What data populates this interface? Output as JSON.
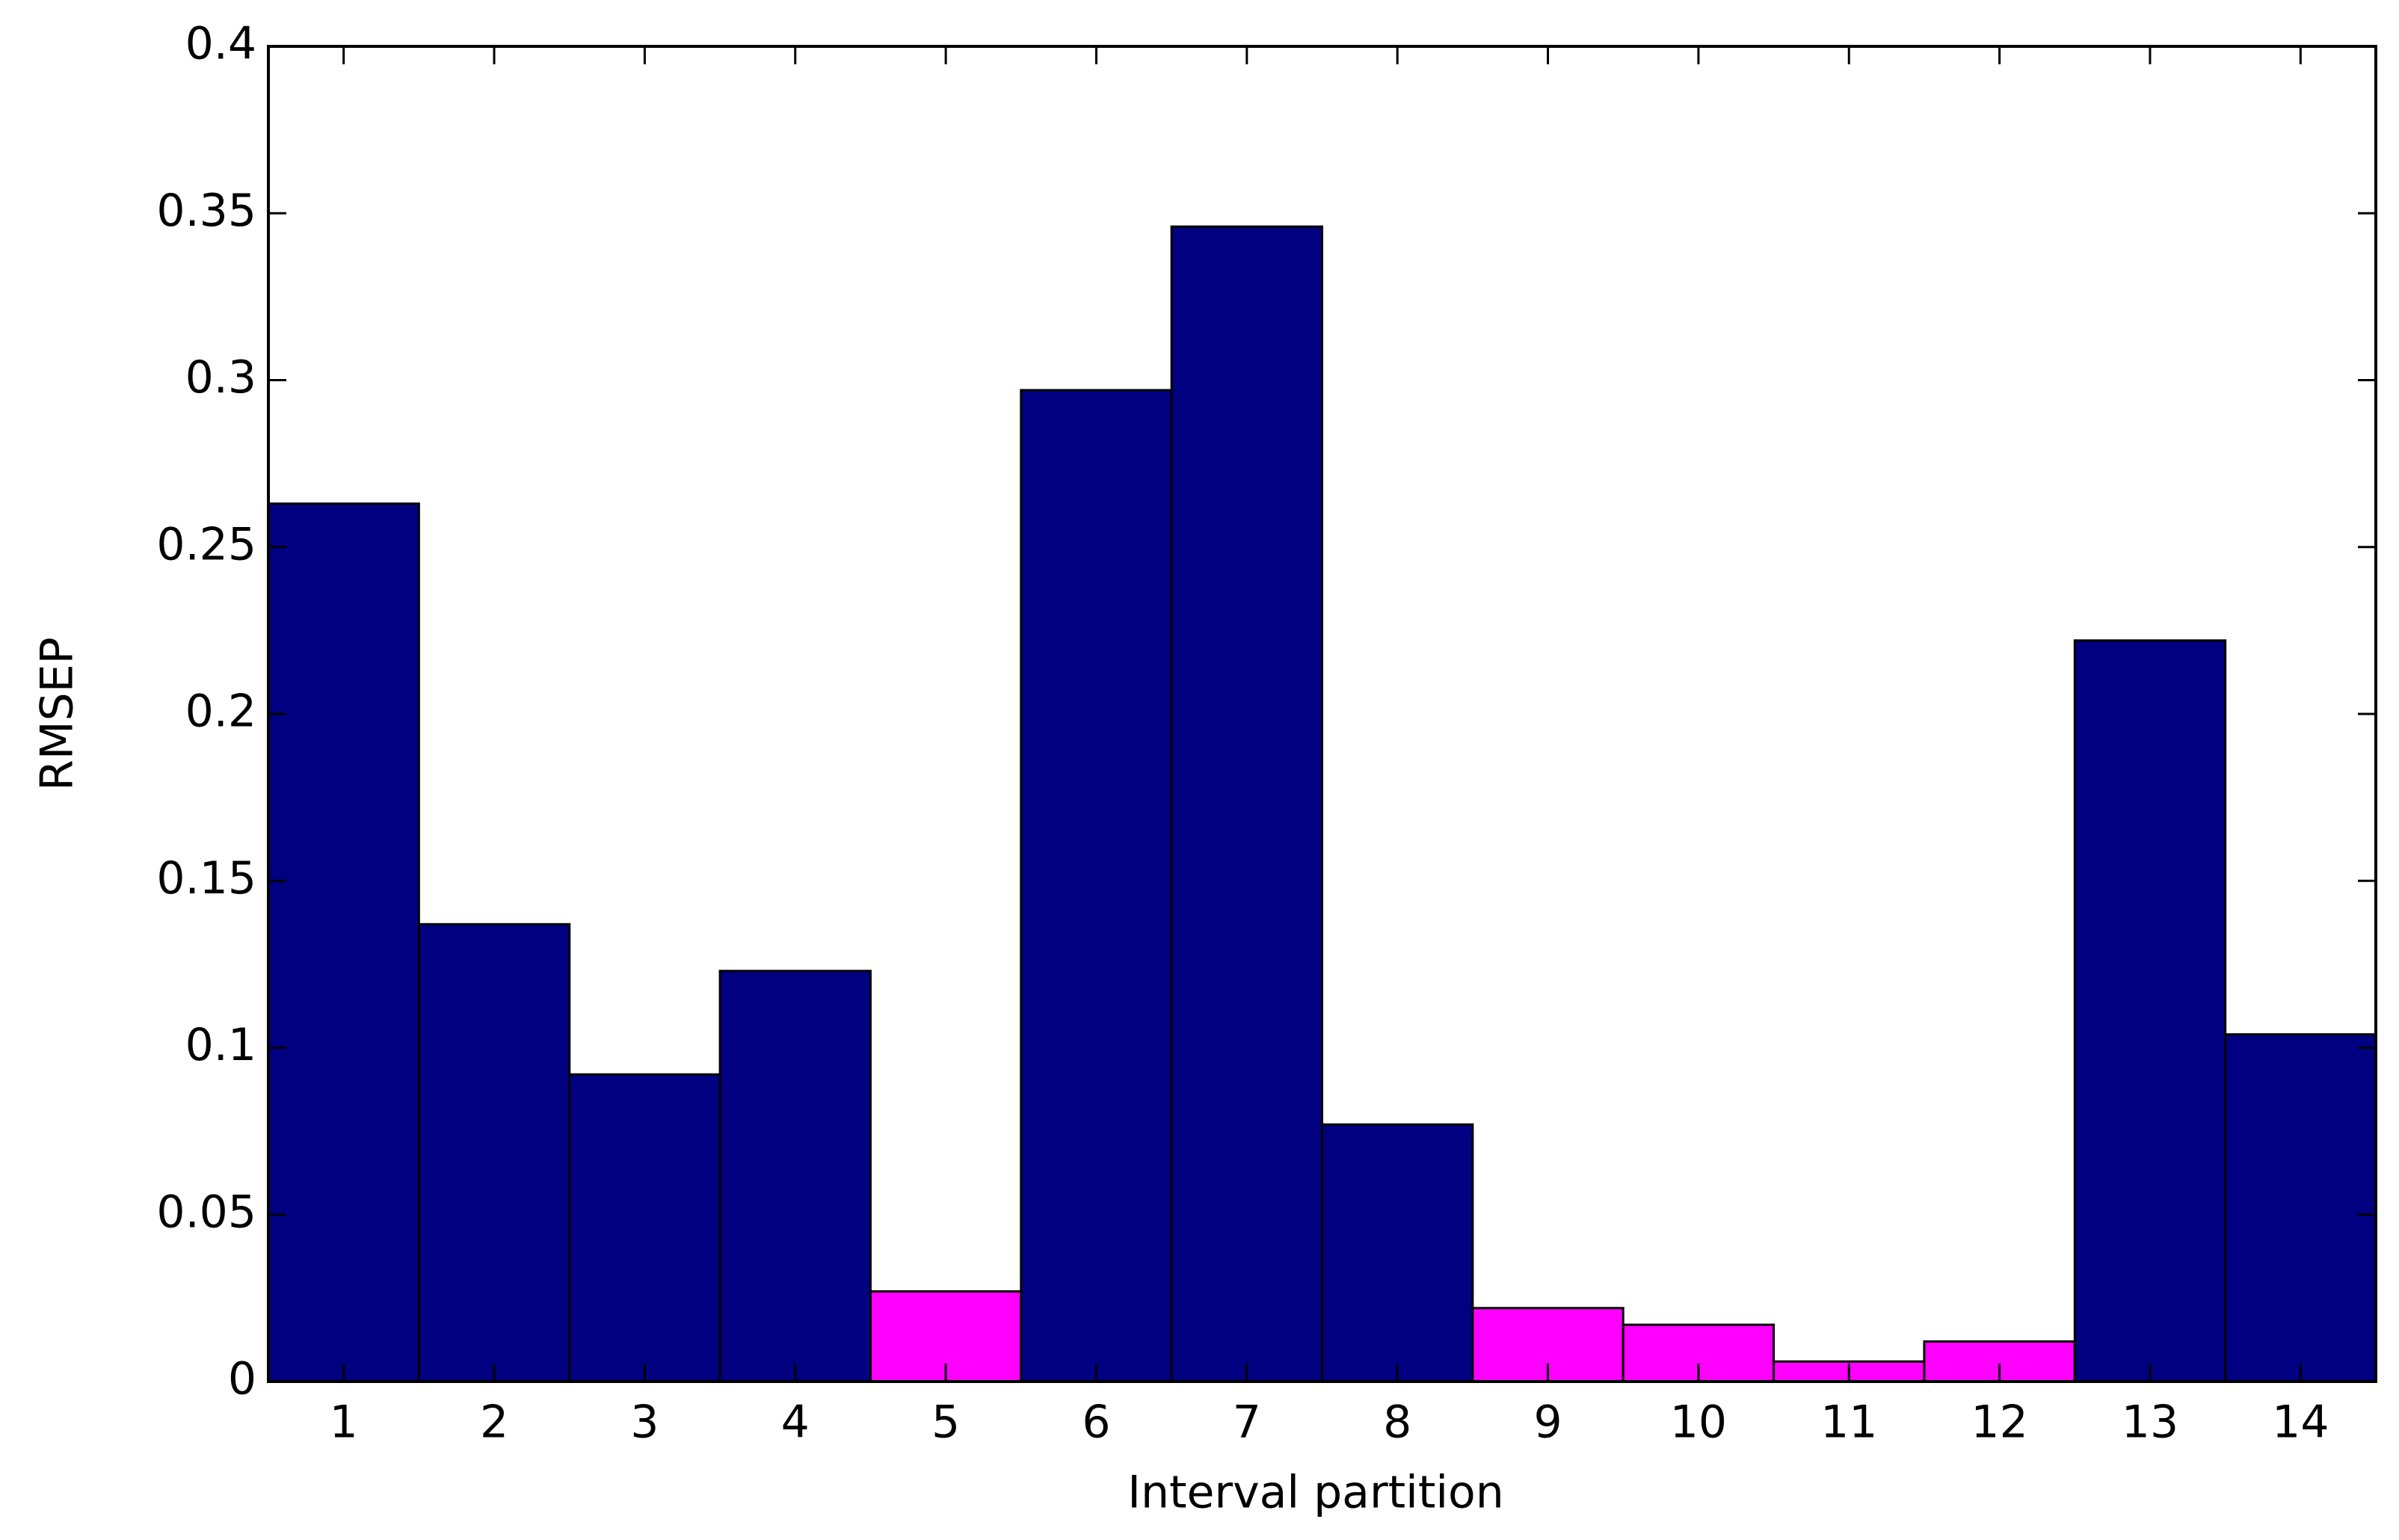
{
  "chart_data": {
    "type": "bar",
    "x_label": "Interval partition",
    "y_label": "RMSEP",
    "categories": [
      "1",
      "2",
      "3",
      "4",
      "5",
      "6",
      "7",
      "8",
      "9",
      "10",
      "11",
      "12",
      "13",
      "14"
    ],
    "values": [
      0.263,
      0.137,
      0.092,
      0.123,
      0.027,
      0.297,
      0.346,
      0.077,
      0.022,
      0.017,
      0.006,
      0.012,
      0.222,
      0.104
    ],
    "colors": [
      "#000080",
      "#000080",
      "#000080",
      "#000080",
      "#ff00ff",
      "#000080",
      "#000080",
      "#000080",
      "#ff00ff",
      "#ff00ff",
      "#ff00ff",
      "#ff00ff",
      "#000080",
      "#000080"
    ],
    "ylim": [
      0,
      0.4
    ],
    "yticks": [
      0,
      0.05,
      0.1,
      0.15,
      0.2,
      0.25,
      0.3,
      0.35,
      0.4
    ],
    "grid": false
  }
}
